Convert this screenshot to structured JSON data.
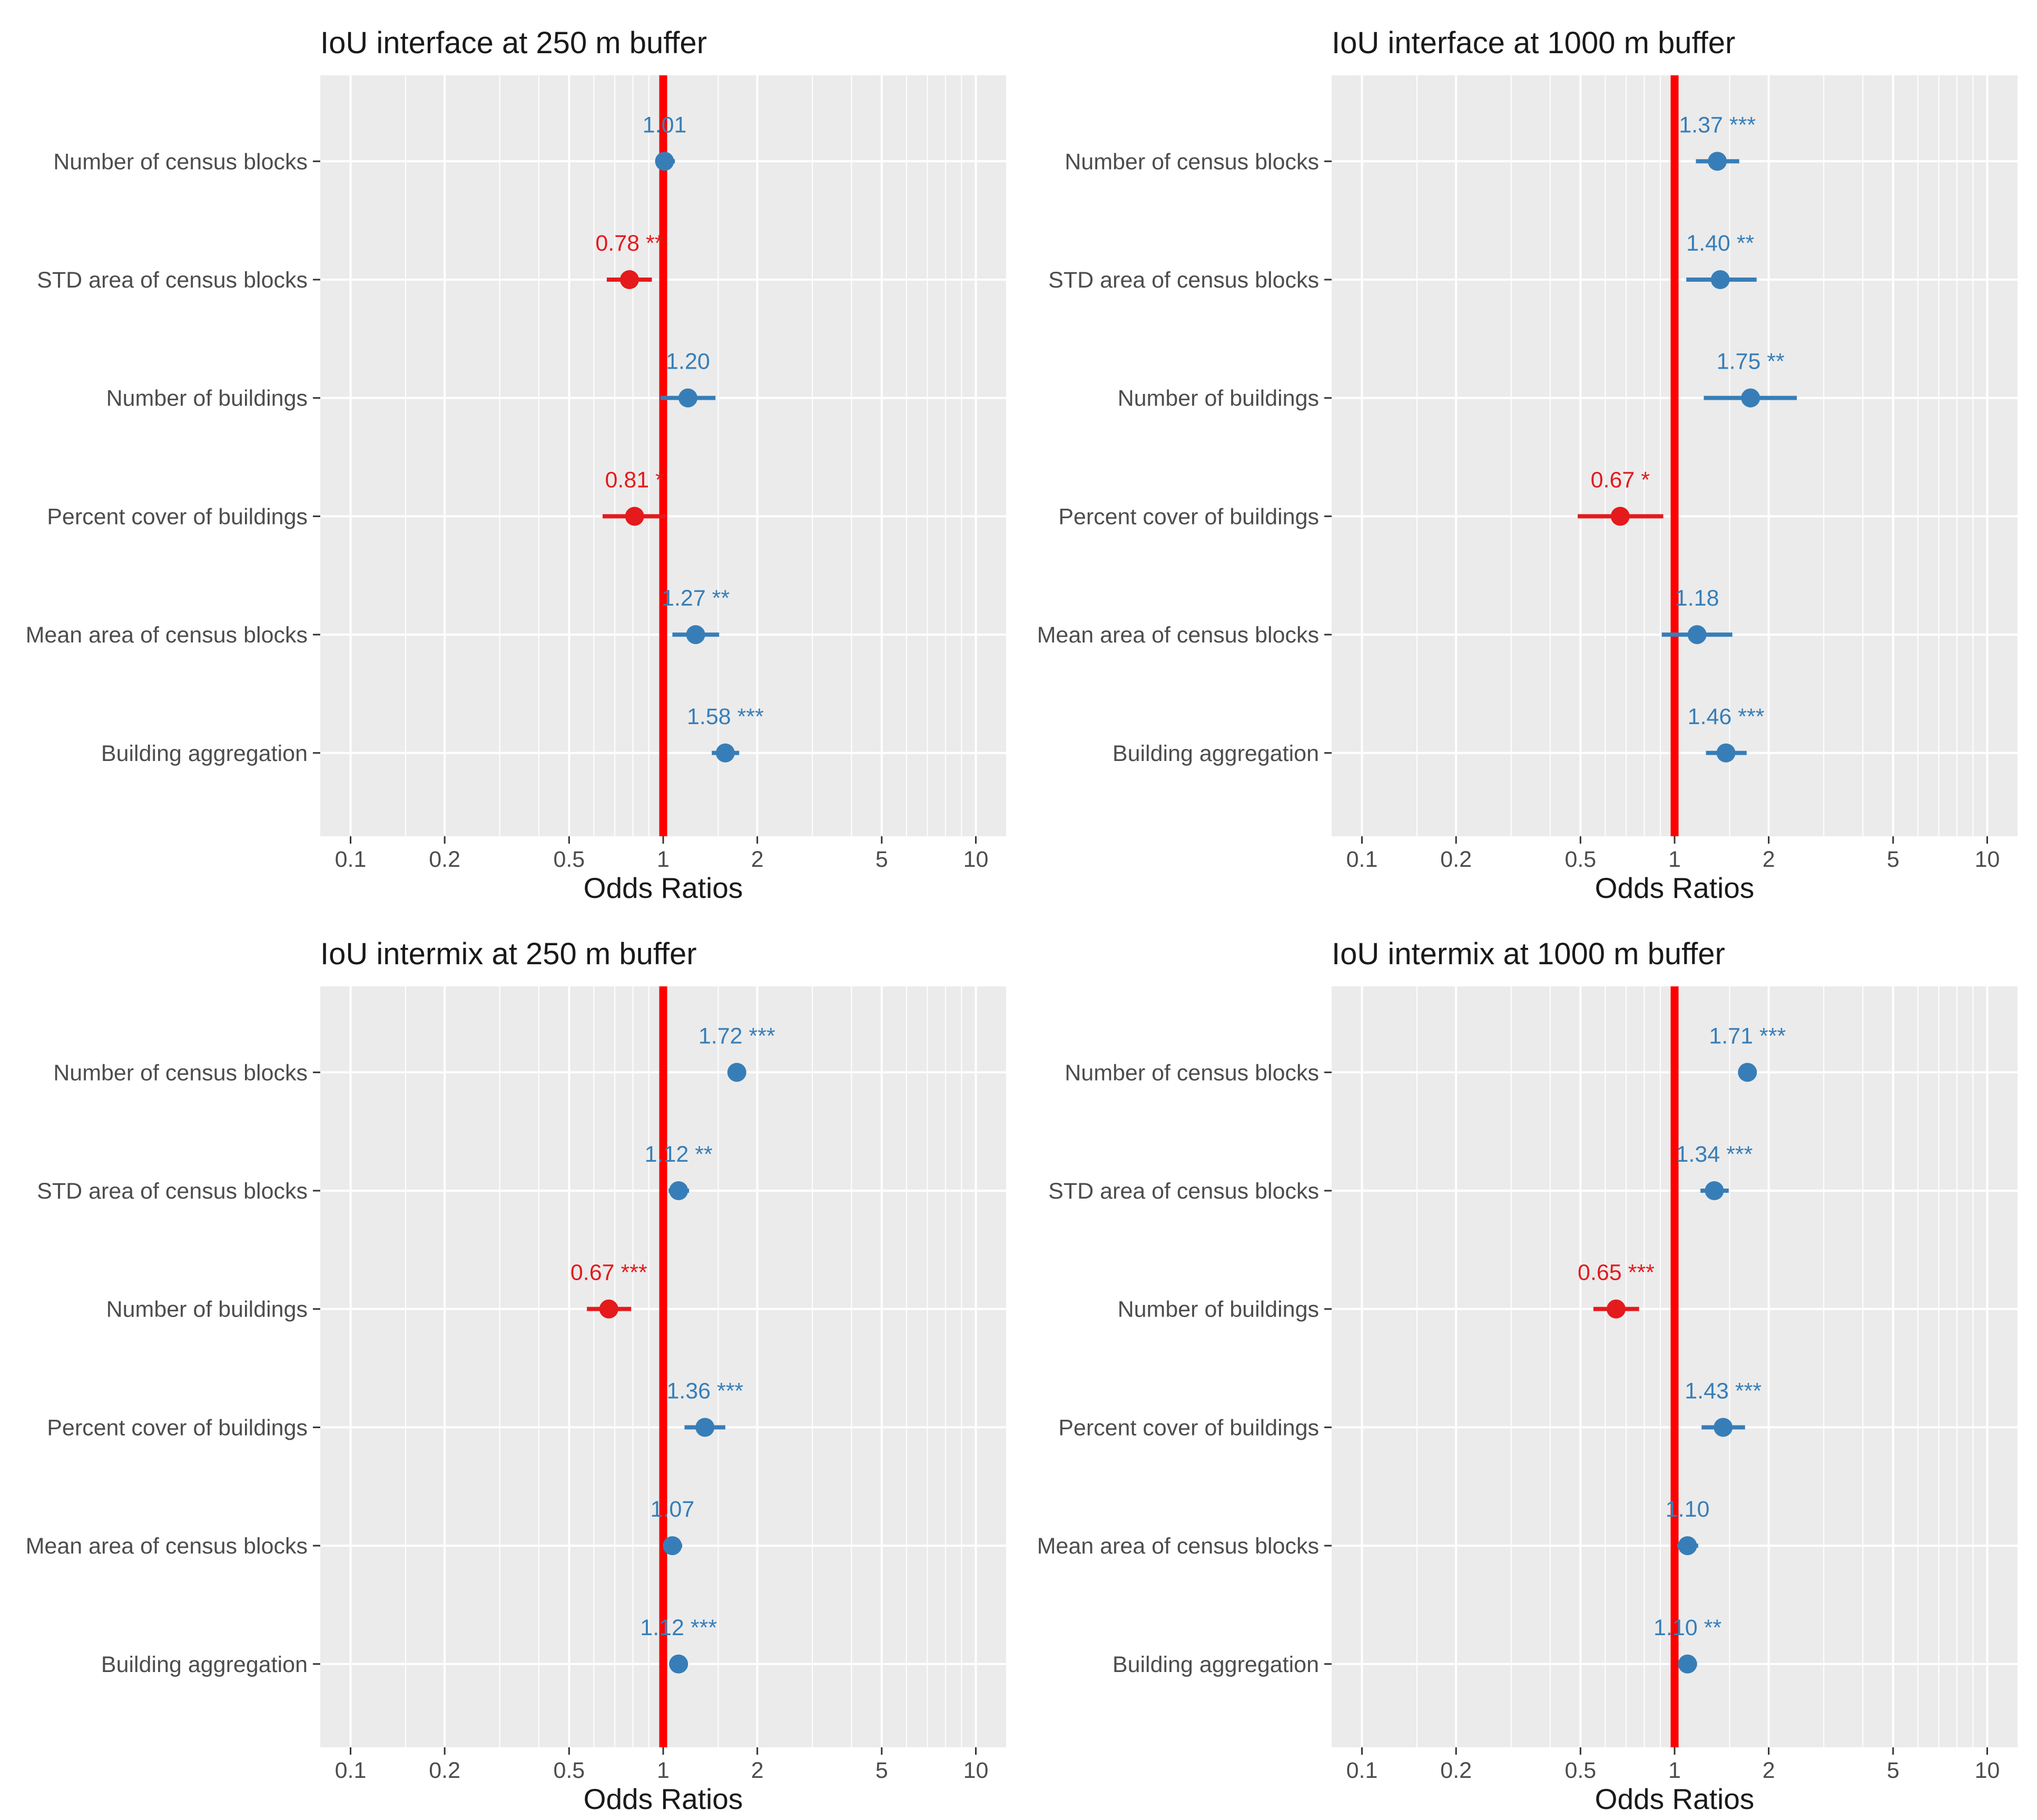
{
  "colors": {
    "positive": "#377eb8",
    "negative": "#e41a1c",
    "reference_line": "#ff0000",
    "panel_bg": "#ebebeb",
    "grid": "#ffffff"
  },
  "chart_data": [
    {
      "type": "forest",
      "title": "IoU interface at 250 m buffer",
      "xlabel": "Odds Ratios",
      "xscale": "log",
      "xlim": [
        0.08,
        12.5
      ],
      "xticks": [
        "0.1",
        "0.2",
        "0.5",
        "1",
        "2",
        "5",
        "10"
      ],
      "reference_value": 1,
      "categories": [
        "Number of census blocks",
        "STD area of census blocks",
        "Number of buildings",
        "Percent cover of buildings",
        "Mean area of census blocks",
        "Building aggregation"
      ],
      "estimates": [
        1.01,
        0.78,
        1.2,
        0.81,
        1.27,
        1.58
      ],
      "ci_low": [
        0.95,
        0.66,
        0.98,
        0.64,
        1.07,
        1.43
      ],
      "ci_high": [
        1.09,
        0.92,
        1.47,
        1.02,
        1.51,
        1.75
      ],
      "labels": [
        "1.01",
        "0.78 **",
        "1.20",
        "0.81 *",
        "1.27 **",
        "1.58 ***"
      ]
    },
    {
      "type": "forest",
      "title": "IoU interface at 1000 m buffer",
      "xlabel": "Odds Ratios",
      "xscale": "log",
      "xlim": [
        0.08,
        12.5
      ],
      "xticks": [
        "0.1",
        "0.2",
        "0.5",
        "1",
        "2",
        "5",
        "10"
      ],
      "reference_value": 1,
      "categories": [
        "Number of census blocks",
        "STD area of census blocks",
        "Number of buildings",
        "Percent cover of buildings",
        "Mean area of census blocks",
        "Building aggregation"
      ],
      "estimates": [
        1.37,
        1.4,
        1.75,
        0.67,
        1.18,
        1.46
      ],
      "ci_low": [
        1.17,
        1.09,
        1.24,
        0.49,
        0.91,
        1.26
      ],
      "ci_high": [
        1.61,
        1.83,
        2.46,
        0.92,
        1.53,
        1.7
      ],
      "labels": [
        "1.37 ***",
        "1.40 **",
        "1.75 **",
        "0.67 *",
        "1.18",
        "1.46 ***"
      ]
    },
    {
      "type": "forest",
      "title": "IoU intermix at 250 m buffer",
      "xlabel": "Odds Ratios",
      "xscale": "log",
      "xlim": [
        0.08,
        12.5
      ],
      "xticks": [
        "0.1",
        "0.2",
        "0.5",
        "1",
        "2",
        "5",
        "10"
      ],
      "reference_value": 1,
      "categories": [
        "Number of census blocks",
        "STD area of census blocks",
        "Number of buildings",
        "Percent cover of buildings",
        "Mean area of census blocks",
        "Building aggregation"
      ],
      "estimates": [
        1.72,
        1.12,
        0.67,
        1.36,
        1.07,
        1.12
      ],
      "ci_low": [
        1.62,
        1.04,
        0.57,
        1.17,
        1.0,
        1.05
      ],
      "ci_high": [
        1.83,
        1.21,
        0.79,
        1.58,
        1.15,
        1.19
      ],
      "labels": [
        "1.72 ***",
        "1.12 **",
        "0.67 ***",
        "1.36 ***",
        "1.07",
        "1.12 ***"
      ]
    },
    {
      "type": "forest",
      "title": "IoU intermix at 1000 m buffer",
      "xlabel": "Odds Ratios",
      "xscale": "log",
      "xlim": [
        0.08,
        12.5
      ],
      "xticks": [
        "0.1",
        "0.2",
        "0.5",
        "1",
        "2",
        "5",
        "10"
      ],
      "reference_value": 1,
      "categories": [
        "Number of census blocks",
        "STD area of census blocks",
        "Number of buildings",
        "Percent cover of buildings",
        "Mean area of census blocks",
        "Building aggregation"
      ],
      "estimates": [
        1.71,
        1.34,
        0.65,
        1.43,
        1.1,
        1.1
      ],
      "ci_low": [
        1.61,
        1.21,
        0.55,
        1.22,
        1.02,
        1.03
      ],
      "ci_high": [
        1.82,
        1.49,
        0.77,
        1.68,
        1.19,
        1.18
      ],
      "labels": [
        "1.71 ***",
        "1.34 ***",
        "0.65 ***",
        "1.43 ***",
        "1.10",
        "1.10 **"
      ]
    }
  ]
}
